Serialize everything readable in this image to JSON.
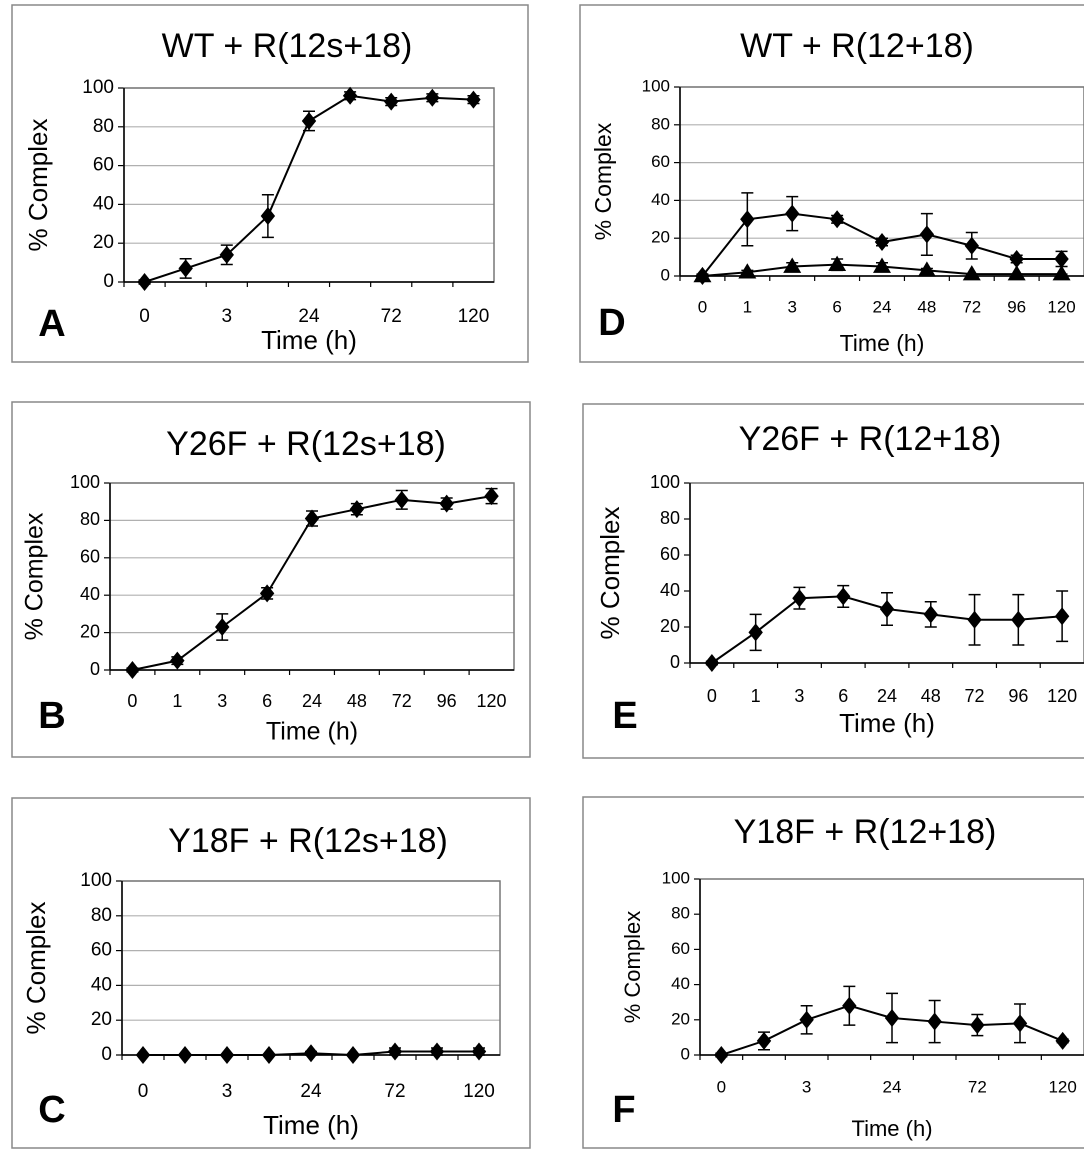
{
  "chart_data": [
    {
      "type": "line",
      "panel": "A",
      "title": "WT + R(12s+18)",
      "x_label": "Time (h)",
      "y_label": "% Complex",
      "categories": [
        "0",
        null,
        "3",
        null,
        "24",
        null,
        "72",
        null,
        "120"
      ],
      "series": [
        {
          "color": "#000000",
          "marker": "diamond",
          "values": [
            0,
            7,
            14,
            34,
            83,
            96,
            93,
            95,
            94
          ],
          "errors": [
            1,
            5,
            5,
            11,
            5,
            2,
            2,
            2,
            2
          ]
        }
      ],
      "ylim": [
        0,
        100
      ],
      "yticks": [
        0,
        20,
        40,
        60,
        80,
        100
      ],
      "grid": true
    },
    {
      "type": "line",
      "panel": "B",
      "title": "Y26F + R(12s+18)",
      "x_label": "Time (h)",
      "y_label": "% Complex",
      "categories": [
        "0",
        "1",
        "3",
        "6",
        "24",
        "48",
        "72",
        "96",
        "120"
      ],
      "series": [
        {
          "color": "#000000",
          "marker": "diamond",
          "values": [
            0,
            5,
            23,
            41,
            81,
            86,
            91,
            89,
            93
          ],
          "errors": [
            1,
            2,
            7,
            3,
            4,
            3,
            5,
            3,
            4
          ]
        }
      ],
      "ylim": [
        0,
        100
      ],
      "yticks": [
        0,
        20,
        40,
        60,
        80,
        100
      ],
      "grid": true
    },
    {
      "type": "line",
      "panel": "C",
      "title": "Y18F + R(12s+18)",
      "x_label": "Time (h)",
      "y_label": "% Complex",
      "categories": [
        "0",
        null,
        "3",
        null,
        "24",
        null,
        "72",
        null,
        "120"
      ],
      "series": [
        {
          "color": "#000000",
          "marker": "diamond",
          "values": [
            0,
            0,
            0,
            0,
            1,
            0,
            2,
            2,
            2
          ],
          "errors": [
            0,
            0,
            0,
            0,
            1,
            0,
            2,
            2,
            2
          ]
        }
      ],
      "ylim": [
        0,
        100
      ],
      "yticks": [
        0,
        20,
        40,
        60,
        80,
        100
      ],
      "grid": true
    },
    {
      "type": "line",
      "panel": "D",
      "title": "WT + R(12+18)",
      "x_label": "Time (h)",
      "y_label": "% Complex",
      "categories": [
        "0",
        "1",
        "3",
        "6",
        "24",
        "48",
        "72",
        "96",
        "120"
      ],
      "series": [
        {
          "color": "#000000",
          "marker": "diamond",
          "values": [
            0,
            30,
            33,
            30,
            18,
            22,
            16,
            9,
            9
          ],
          "errors": [
            1,
            14,
            9,
            2,
            2,
            11,
            7,
            2,
            4
          ]
        },
        {
          "color": "#000000",
          "marker": "triangle",
          "values": [
            0,
            2,
            5,
            6,
            5,
            3,
            1,
            1,
            1
          ],
          "errors": [
            0,
            1,
            2,
            3,
            2,
            1,
            0,
            0,
            0
          ]
        }
      ],
      "ylim": [
        0,
        100
      ],
      "yticks": [
        0,
        20,
        40,
        60,
        80,
        100
      ],
      "grid": true
    },
    {
      "type": "line",
      "panel": "E",
      "title": "Y26F + R(12+18)",
      "x_label": "Time (h)",
      "y_label": "% Complex",
      "categories": [
        "0",
        "1",
        "3",
        "6",
        "24",
        "48",
        "72",
        "96",
        "120"
      ],
      "series": [
        {
          "color": "#000000",
          "marker": "diamond",
          "values": [
            0,
            17,
            36,
            37,
            30,
            27,
            24,
            24,
            26
          ],
          "errors": [
            1,
            10,
            6,
            6,
            9,
            7,
            14,
            14,
            14
          ]
        }
      ],
      "ylim": [
        0,
        100
      ],
      "yticks": [
        0,
        20,
        40,
        60,
        80,
        100
      ],
      "grid": false
    },
    {
      "type": "line",
      "panel": "F",
      "title": "Y18F + R(12+18)",
      "x_label": "Time (h)",
      "y_label": "% Complex",
      "categories": [
        "0",
        null,
        "3",
        null,
        "24",
        null,
        "72",
        null,
        "120"
      ],
      "series": [
        {
          "color": "#000000",
          "marker": "diamond",
          "values": [
            0,
            8,
            20,
            28,
            21,
            19,
            17,
            18,
            8
          ],
          "errors": [
            1,
            5,
            8,
            11,
            14,
            12,
            6,
            11,
            1
          ]
        }
      ],
      "ylim": [
        0,
        100
      ],
      "yticks": [
        0,
        20,
        40,
        60,
        80,
        100
      ],
      "grid": false
    }
  ]
}
